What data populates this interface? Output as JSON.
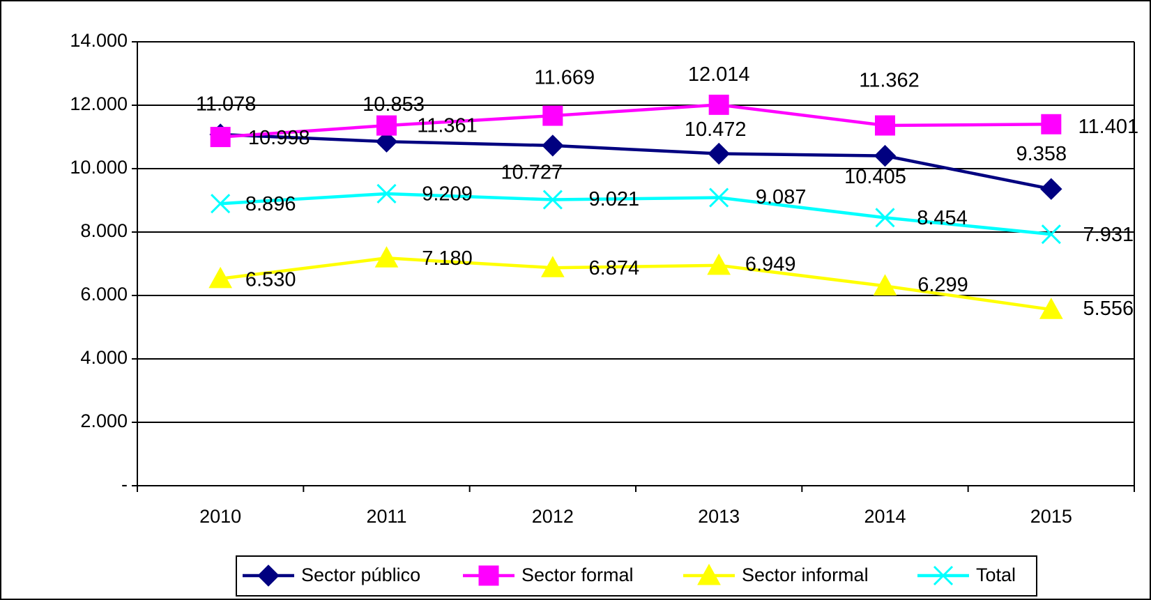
{
  "chart_data": {
    "type": "line",
    "categories": [
      "2010",
      "2011",
      "2012",
      "2013",
      "2014",
      "2015"
    ],
    "series": [
      {
        "name": "Sector público",
        "color": "#000080",
        "marker": "diamond",
        "values": [
          11078,
          10853,
          10727,
          10472,
          10405,
          9358
        ],
        "value_labels": [
          "11.078",
          "10.853",
          "10.727",
          "10.472",
          "10.405",
          "9.358"
        ]
      },
      {
        "name": "Sector formal",
        "color": "#ff00ff",
        "marker": "square",
        "values": [
          10998,
          11361,
          11669,
          12014,
          11362,
          11401
        ],
        "value_labels": [
          "10.998",
          "11.361",
          "11.669",
          "12.014",
          "11.362",
          "11.401"
        ]
      },
      {
        "name": "Sector informal",
        "color": "#ffff00",
        "marker": "triangle",
        "values": [
          6530,
          7180,
          6874,
          6949,
          6299,
          5556
        ],
        "value_labels": [
          "6.530",
          "7.180",
          "6.874",
          "6.949",
          "6.299",
          "5.556"
        ]
      },
      {
        "name": "Total",
        "color": "#00ffff",
        "marker": "x",
        "values": [
          8896,
          9209,
          9021,
          9087,
          8454,
          7931
        ],
        "value_labels": [
          "8.896",
          "9.209",
          "9.021",
          "9.087",
          "8.454",
          "7.931"
        ]
      }
    ],
    "ylim": [
      0,
      14000
    ],
    "yticks": [
      {
        "value": 0,
        "label": "-"
      },
      {
        "value": 2000,
        "label": "2.000"
      },
      {
        "value": 4000,
        "label": "4.000"
      },
      {
        "value": 6000,
        "label": "6.000"
      },
      {
        "value": 8000,
        "label": "8.000"
      },
      {
        "value": 10000,
        "label": "10.000"
      },
      {
        "value": 12000,
        "label": "12.000"
      },
      {
        "value": 14000,
        "label": "14.000"
      }
    ],
    "grid": true,
    "legend": "bottom"
  }
}
